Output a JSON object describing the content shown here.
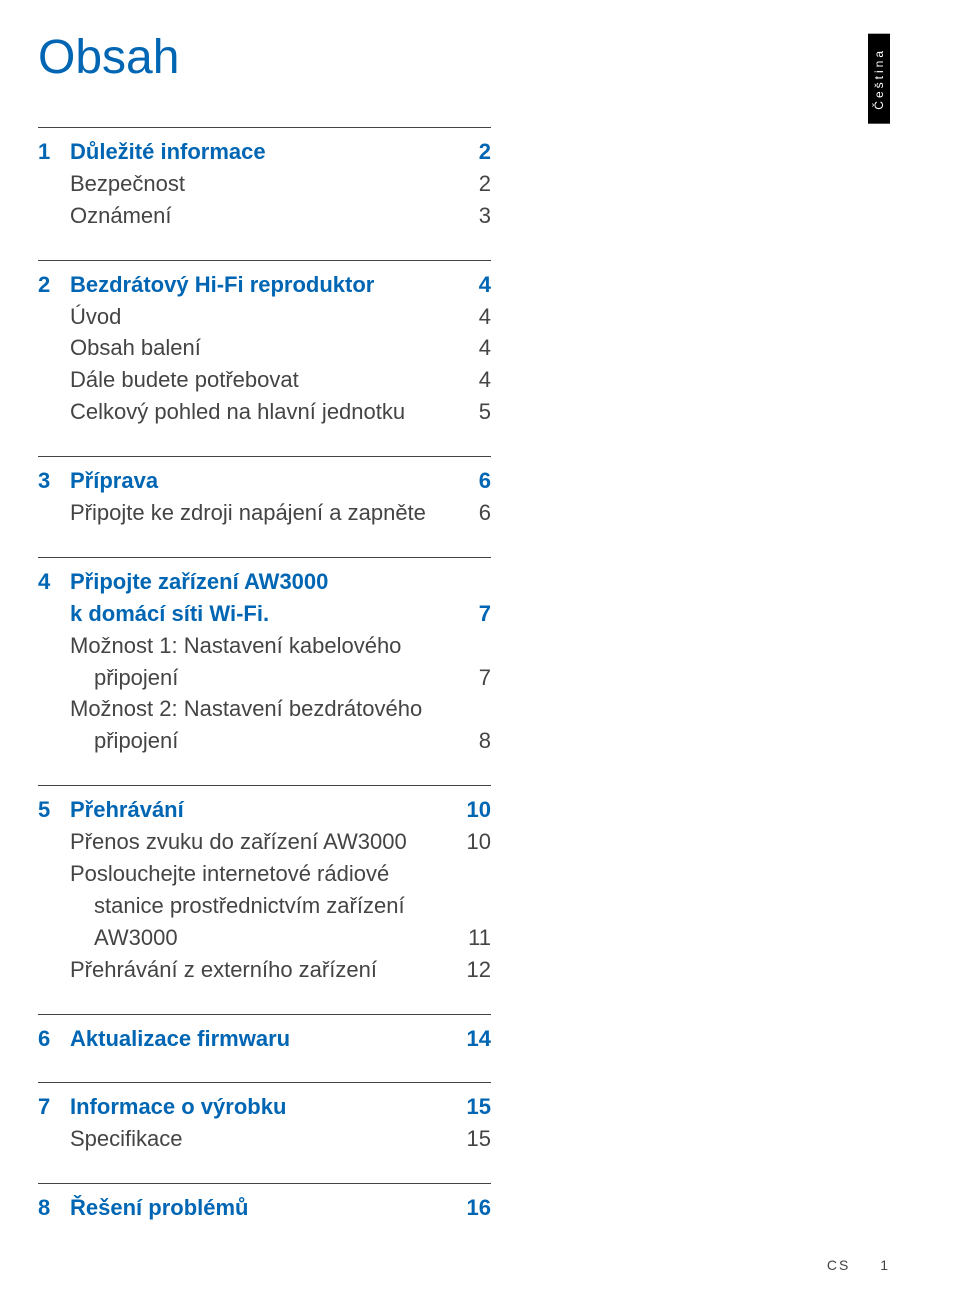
{
  "colors": {
    "brand": "#0066b3",
    "text": "#444444",
    "background": "#ffffff",
    "lang_bg": "#000000",
    "lang_text": "#ffffff"
  },
  "title": "Obsah",
  "language_label": "Čeština",
  "footer": {
    "lang_code": "CS",
    "page": "1"
  },
  "sections": [
    {
      "number": "1",
      "heading": "Důležité informace",
      "page": "2",
      "items": [
        {
          "label": "Bezpečnost",
          "page": "2"
        },
        {
          "label": "Oznámení",
          "page": "3"
        }
      ]
    },
    {
      "number": "2",
      "heading": "Bezdrátový Hi-Fi reproduktor",
      "page": "4",
      "items": [
        {
          "label": "Úvod",
          "page": "4"
        },
        {
          "label": "Obsah balení",
          "page": "4"
        },
        {
          "label": "Dále budete potřebovat",
          "page": "4"
        },
        {
          "label": "Celkový pohled na hlavní jednotku",
          "page": "5"
        }
      ]
    },
    {
      "number": "3",
      "heading": "Příprava",
      "page": "6",
      "items": [
        {
          "label": "Připojte ke zdroji napájení a zapněte",
          "page": "6"
        }
      ]
    },
    {
      "number": "4",
      "heading_lines": [
        "Připojte zařízení AW3000",
        "k domácí síti Wi-Fi."
      ],
      "page": "7",
      "items": [
        {
          "label_lines": [
            "Možnost 1: Nastavení kabelového",
            "připojení"
          ],
          "page": "7",
          "indent_second": true
        },
        {
          "label_lines": [
            "Možnost 2: Nastavení bezdrátového",
            "připojení"
          ],
          "page": "8",
          "indent_second": true
        }
      ]
    },
    {
      "number": "5",
      "heading": "Přehrávání",
      "page": "10",
      "items": [
        {
          "label": "Přenos zvuku do zařízení AW3000",
          "page": "10"
        },
        {
          "label_lines": [
            "Poslouchejte internetové rádiové",
            "stanice prostřednictvím zařízení",
            "AW3000"
          ],
          "page": "11",
          "indent_second": true
        },
        {
          "label": "Přehrávání z externího zařízení",
          "page": "12"
        }
      ]
    },
    {
      "number": "6",
      "heading": "Aktualizace firmwaru",
      "page": "14",
      "items": []
    },
    {
      "number": "7",
      "heading": "Informace o výrobku",
      "page": "15",
      "items": [
        {
          "label": "Specifikace",
          "page": "15"
        }
      ]
    },
    {
      "number": "8",
      "heading": "Řešení problémů",
      "page": "16",
      "items": []
    }
  ]
}
